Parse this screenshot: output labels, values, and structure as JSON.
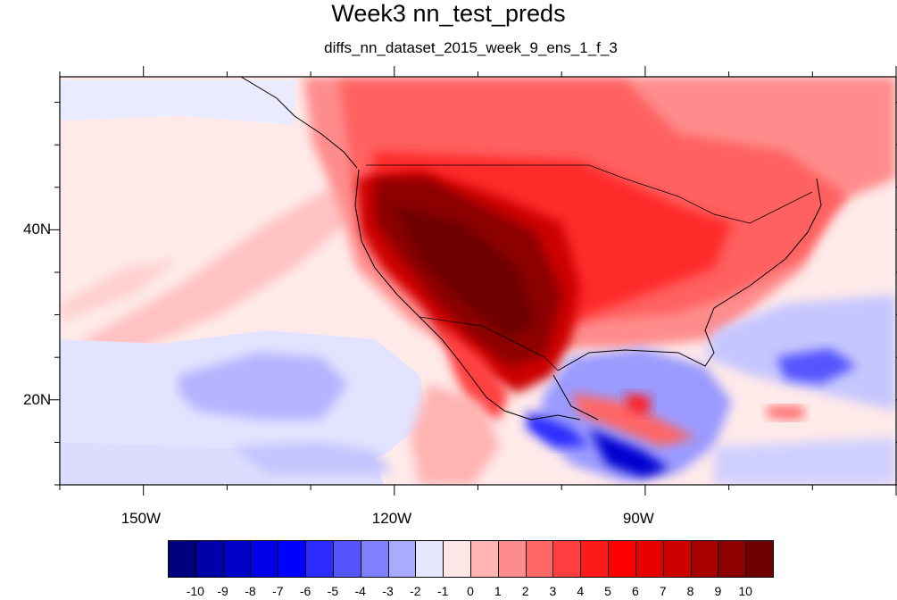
{
  "title": "Week3 nn_test_preds",
  "subtitle": "diffs_nn_dataset_2015_week_9_ens_1_f_3",
  "map": {
    "projection": "cylindrical-equidistant",
    "region": "North Pacific / North America",
    "lon_range": [
      -160,
      -60
    ],
    "lat_range": [
      10,
      58
    ],
    "lat_ticks": [
      {
        "value": 40,
        "label": "40N"
      },
      {
        "value": 20,
        "label": "20N"
      }
    ],
    "lon_ticks": [
      {
        "value": -150,
        "label": "150W"
      },
      {
        "value": -120,
        "label": "120W"
      },
      {
        "value": -90,
        "label": "90W"
      }
    ],
    "field_description_features": [
      "strong positive anomaly over western and southwestern United States and northern Mexico",
      "moderate positive anomaly over central and eastern United States and Canada",
      "negative anomaly over subtropical Pacific near Hawaii",
      "strong negative anomaly over Gulf of Mexico and Caribbean"
    ]
  },
  "colorbar": {
    "levels": [
      "-10",
      "-9",
      "-8",
      "-7",
      "-6",
      "-5",
      "-4",
      "-3",
      "-2",
      "-1",
      "0",
      "1",
      "2",
      "3",
      "4",
      "5",
      "6",
      "7",
      "8",
      "9",
      "10"
    ],
    "colors": [
      "#00007f",
      "#0000a8",
      "#0000c8",
      "#0000e6",
      "#0000ff",
      "#2b2bff",
      "#5555ff",
      "#8080ff",
      "#aaaaff",
      "#e6e6ff",
      "#ffe6e6",
      "#ffb3b3",
      "#ff8c8c",
      "#ff6666",
      "#ff3f3f",
      "#ff1a1a",
      "#ff0000",
      "#e60000",
      "#cc0000",
      "#a80000",
      "#8c0000",
      "#6e0000"
    ]
  }
}
